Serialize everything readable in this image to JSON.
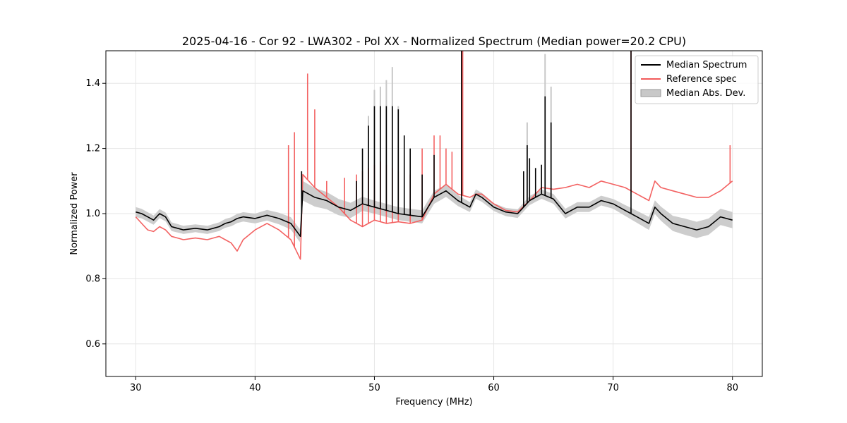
{
  "chart_data": {
    "type": "line",
    "title": "2025-04-16 - Cor 92 - LWA302 - Pol XX - Normalized Spectrum (Median power=20.2 CPU)",
    "xlabel": "Frequency (MHz)",
    "ylabel": "Normalized Power",
    "xlim": [
      27.5,
      82.5
    ],
    "ylim": [
      0.5,
      1.5
    ],
    "xticks": [
      30,
      40,
      50,
      60,
      70,
      80
    ],
    "yticks": [
      0.6,
      0.8,
      1.0,
      1.2,
      1.4
    ],
    "xtick_labels": [
      "30",
      "40",
      "50",
      "60",
      "70",
      "80"
    ],
    "ytick_labels": [
      "0.6",
      "0.8",
      "1.0",
      "1.2",
      "1.4"
    ],
    "grid": true,
    "legend_position": "top-right",
    "legend": [
      {
        "label": "Median Spectrum",
        "color": "#000000",
        "kind": "line"
      },
      {
        "label": "Reference spec",
        "color": "#f25a5a",
        "kind": "line"
      },
      {
        "label": "Median Abs. Dev.",
        "color": "#c8c8c8",
        "kind": "patch"
      }
    ],
    "series": [
      {
        "name": "Median Spectrum",
        "color": "#000000",
        "x": [
          30.0,
          30.5,
          31.0,
          31.5,
          32.0,
          32.5,
          33.0,
          33.5,
          34.0,
          35.0,
          36.0,
          36.5,
          37.0,
          37.5,
          38.0,
          38.5,
          39.0,
          40.0,
          41.0,
          42.0,
          43.0,
          43.8,
          44.0,
          44.5,
          45.0,
          46.0,
          47.0,
          48.0,
          49.0,
          50.0,
          51.0,
          52.0,
          53.0,
          54.0,
          55.0,
          56.0,
          57.0,
          58.0,
          58.5,
          59.0,
          60.0,
          61.0,
          62.0,
          63.0,
          64.0,
          65.0,
          66.0,
          67.0,
          68.0,
          69.0,
          70.0,
          71.0,
          72.0,
          73.0,
          73.5,
          74.0,
          75.0,
          76.0,
          77.0,
          78.0,
          79.0,
          80.0
        ],
        "y": [
          1.005,
          1.0,
          0.99,
          0.98,
          1.0,
          0.99,
          0.96,
          0.955,
          0.95,
          0.955,
          0.95,
          0.955,
          0.96,
          0.97,
          0.975,
          0.985,
          0.99,
          0.985,
          0.995,
          0.985,
          0.97,
          0.93,
          1.07,
          1.06,
          1.05,
          1.04,
          1.02,
          1.01,
          1.03,
          1.02,
          1.01,
          1.0,
          0.995,
          0.99,
          1.05,
          1.07,
          1.04,
          1.02,
          1.06,
          1.05,
          1.02,
          1.005,
          1.0,
          1.04,
          1.06,
          1.045,
          1.0,
          1.02,
          1.02,
          1.04,
          1.03,
          1.01,
          0.99,
          0.97,
          1.02,
          1.0,
          0.97,
          0.96,
          0.95,
          0.96,
          0.99,
          0.98
        ]
      },
      {
        "name": "Reference spec",
        "color": "#f25a5a",
        "x": [
          30.0,
          30.5,
          31.0,
          31.5,
          32.0,
          32.5,
          33.0,
          33.5,
          34.0,
          35.0,
          36.0,
          36.5,
          37.0,
          37.5,
          38.0,
          38.5,
          39.0,
          40.0,
          41.0,
          42.0,
          43.0,
          43.8,
          44.0,
          44.5,
          45.0,
          46.0,
          47.0,
          48.0,
          49.0,
          50.0,
          51.0,
          52.0,
          53.0,
          54.0,
          55.0,
          56.0,
          57.0,
          58.0,
          58.5,
          59.0,
          60.0,
          61.0,
          62.0,
          63.0,
          64.0,
          65.0,
          66.0,
          67.0,
          68.0,
          69.0,
          70.0,
          71.0,
          72.0,
          73.0,
          73.5,
          74.0,
          75.0,
          76.0,
          77.0,
          78.0,
          79.0,
          80.0
        ],
        "y": [
          0.99,
          0.97,
          0.95,
          0.945,
          0.96,
          0.95,
          0.93,
          0.925,
          0.92,
          0.925,
          0.92,
          0.925,
          0.93,
          0.92,
          0.91,
          0.885,
          0.92,
          0.95,
          0.97,
          0.95,
          0.92,
          0.86,
          1.12,
          1.1,
          1.08,
          1.05,
          1.02,
          0.98,
          0.96,
          0.98,
          0.97,
          0.975,
          0.97,
          0.98,
          1.06,
          1.09,
          1.06,
          1.05,
          1.06,
          1.06,
          1.03,
          1.01,
          1.005,
          1.04,
          1.08,
          1.075,
          1.08,
          1.09,
          1.08,
          1.1,
          1.09,
          1.08,
          1.06,
          1.04,
          1.1,
          1.08,
          1.07,
          1.06,
          1.05,
          1.05,
          1.07,
          1.1
        ]
      },
      {
        "name": "Median Abs. Dev.",
        "color": "#c8c8c8",
        "x": [
          30.0,
          35.0,
          40.0,
          43.8,
          44.0,
          50.0,
          55.0,
          60.0,
          65.0,
          70.0,
          73.0,
          76.0,
          80.0
        ],
        "y": [
          0.015,
          0.012,
          0.015,
          0.02,
          0.03,
          0.02,
          0.02,
          0.012,
          0.015,
          0.015,
          0.02,
          0.025,
          0.025
        ]
      }
    ],
    "spikes": [
      {
        "series": "Reference spec",
        "x": [
          42.8,
          43.3,
          44.4,
          45.0,
          46.0,
          47.5,
          48.5,
          49.0,
          49.5,
          50.0,
          50.5,
          51.0,
          51.5,
          52.0,
          53.0,
          54.0,
          55.0,
          55.5,
          56.0,
          56.5,
          57.3,
          57.4,
          71.5,
          79.8
        ],
        "y": [
          1.21,
          1.25,
          1.43,
          1.32,
          1.1,
          1.11,
          1.12,
          1.13,
          1.14,
          1.15,
          1.16,
          1.15,
          1.14,
          1.13,
          1.12,
          1.2,
          1.24,
          1.24,
          1.2,
          1.19,
          1.5,
          1.5,
          1.5,
          1.21
        ]
      },
      {
        "series": "Median Spectrum",
        "x": [
          43.9,
          48.5,
          49.0,
          49.5,
          50.0,
          50.5,
          51.0,
          51.5,
          52.0,
          52.5,
          53.0,
          54.0,
          55.0,
          57.3,
          62.5,
          62.8,
          63.0,
          63.5,
          64.0,
          64.3,
          64.8,
          71.5
        ],
        "y": [
          1.13,
          1.1,
          1.2,
          1.27,
          1.33,
          1.33,
          1.33,
          1.33,
          1.32,
          1.24,
          1.2,
          1.12,
          1.18,
          1.5,
          1.13,
          1.21,
          1.17,
          1.14,
          1.15,
          1.36,
          1.28,
          1.5
        ]
      },
      {
        "series": "Median Abs. Dev.",
        "x": [
          49.5,
          50.0,
          50.5,
          51.0,
          51.5,
          52.0,
          62.8,
          64.3,
          64.8
        ],
        "y": [
          1.3,
          1.38,
          1.39,
          1.41,
          1.45,
          1.33,
          1.28,
          1.49,
          1.39
        ]
      }
    ]
  }
}
